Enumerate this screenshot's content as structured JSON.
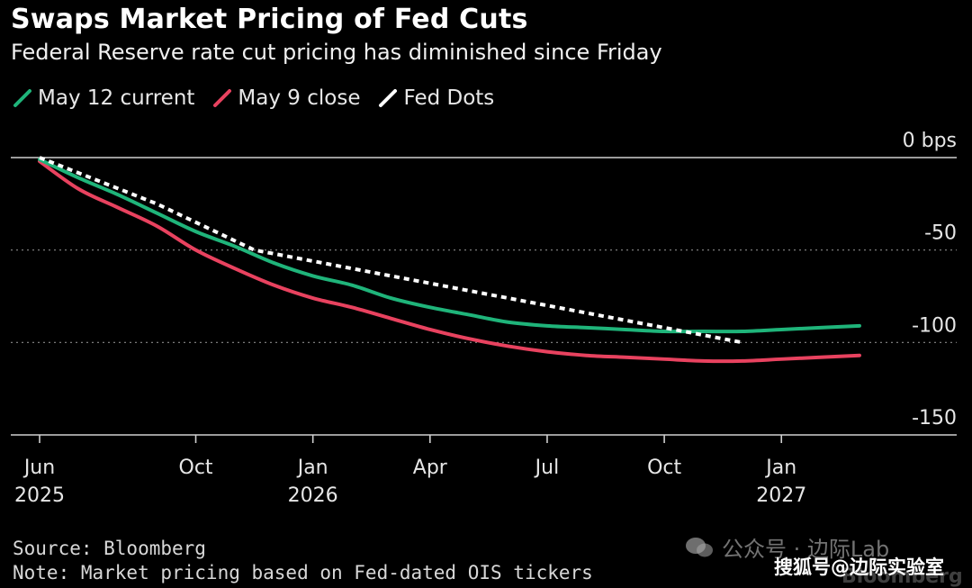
{
  "title": "Swaps Market Pricing of Fed Cuts",
  "subtitle": "Federal Reserve rate cut pricing has diminished since Friday",
  "legend": [
    {
      "label": "May 12 current",
      "color": "#1fb47a"
    },
    {
      "label": "May 9 close",
      "color": "#e8425f"
    },
    {
      "label": "Fed Dots",
      "color": "#ffffff"
    }
  ],
  "footer": {
    "source": "Source: Bloomberg",
    "note": "Note: Market pricing based on Fed-dated OIS tickers"
  },
  "watermark": {
    "channel": "公众号 · 边际Lab",
    "site": "搜狐号@边际实验室",
    "brand": "Bloomberg"
  },
  "chart_data": {
    "type": "line",
    "title": "Swaps Market Pricing of Fed Cuts",
    "xlabel": "",
    "ylabel": "",
    "y_unit": "bps",
    "ylim": [
      -150,
      0
    ],
    "y_ticks": [
      0,
      -50,
      -100,
      -150
    ],
    "y_tick_labels": [
      "0 bps",
      "-50",
      "-100",
      "-150"
    ],
    "x_domain": [
      0,
      21
    ],
    "x_ticks": [
      {
        "x": 0,
        "label": "Jun",
        "sub": "2025"
      },
      {
        "x": 4,
        "label": "Oct",
        "sub": ""
      },
      {
        "x": 7,
        "label": "Jan",
        "sub": "2026"
      },
      {
        "x": 10,
        "label": "Apr",
        "sub": ""
      },
      {
        "x": 13,
        "label": "Jul",
        "sub": ""
      },
      {
        "x": 16,
        "label": "Oct",
        "sub": ""
      },
      {
        "x": 19,
        "label": "Jan",
        "sub": "2027"
      }
    ],
    "series": [
      {
        "name": "May 12 current",
        "color": "#1fb47a",
        "style": "solid",
        "x": [
          0,
          1,
          2,
          3,
          4,
          5,
          6,
          7,
          8,
          9,
          10,
          11,
          12,
          13,
          14,
          15,
          16,
          17,
          18,
          19,
          20,
          21
        ],
        "values": [
          -1,
          -11,
          -20,
          -30,
          -40,
          -48,
          -57,
          -64,
          -69,
          -76,
          -81,
          -85,
          -89,
          -91,
          -92,
          -93,
          -94,
          -94,
          -94,
          -93,
          -92,
          -91
        ]
      },
      {
        "name": "May 9 close",
        "color": "#e8425f",
        "style": "solid",
        "x": [
          0,
          1,
          2,
          3,
          4,
          5,
          6,
          7,
          8,
          9,
          10,
          11,
          12,
          13,
          14,
          15,
          16,
          17,
          18,
          19,
          20,
          21
        ],
        "values": [
          -2,
          -17,
          -27,
          -37,
          -50,
          -60,
          -69,
          -76,
          -81,
          -87,
          -93,
          -98,
          -102,
          -105,
          -107,
          -108,
          -109,
          -110,
          -110,
          -109,
          -108,
          -107
        ]
      },
      {
        "name": "Fed Dots",
        "color": "#ffffff",
        "style": "dashed",
        "x": [
          0,
          3,
          5.5,
          18
        ],
        "values": [
          0,
          -25,
          -50,
          -100
        ]
      }
    ]
  }
}
